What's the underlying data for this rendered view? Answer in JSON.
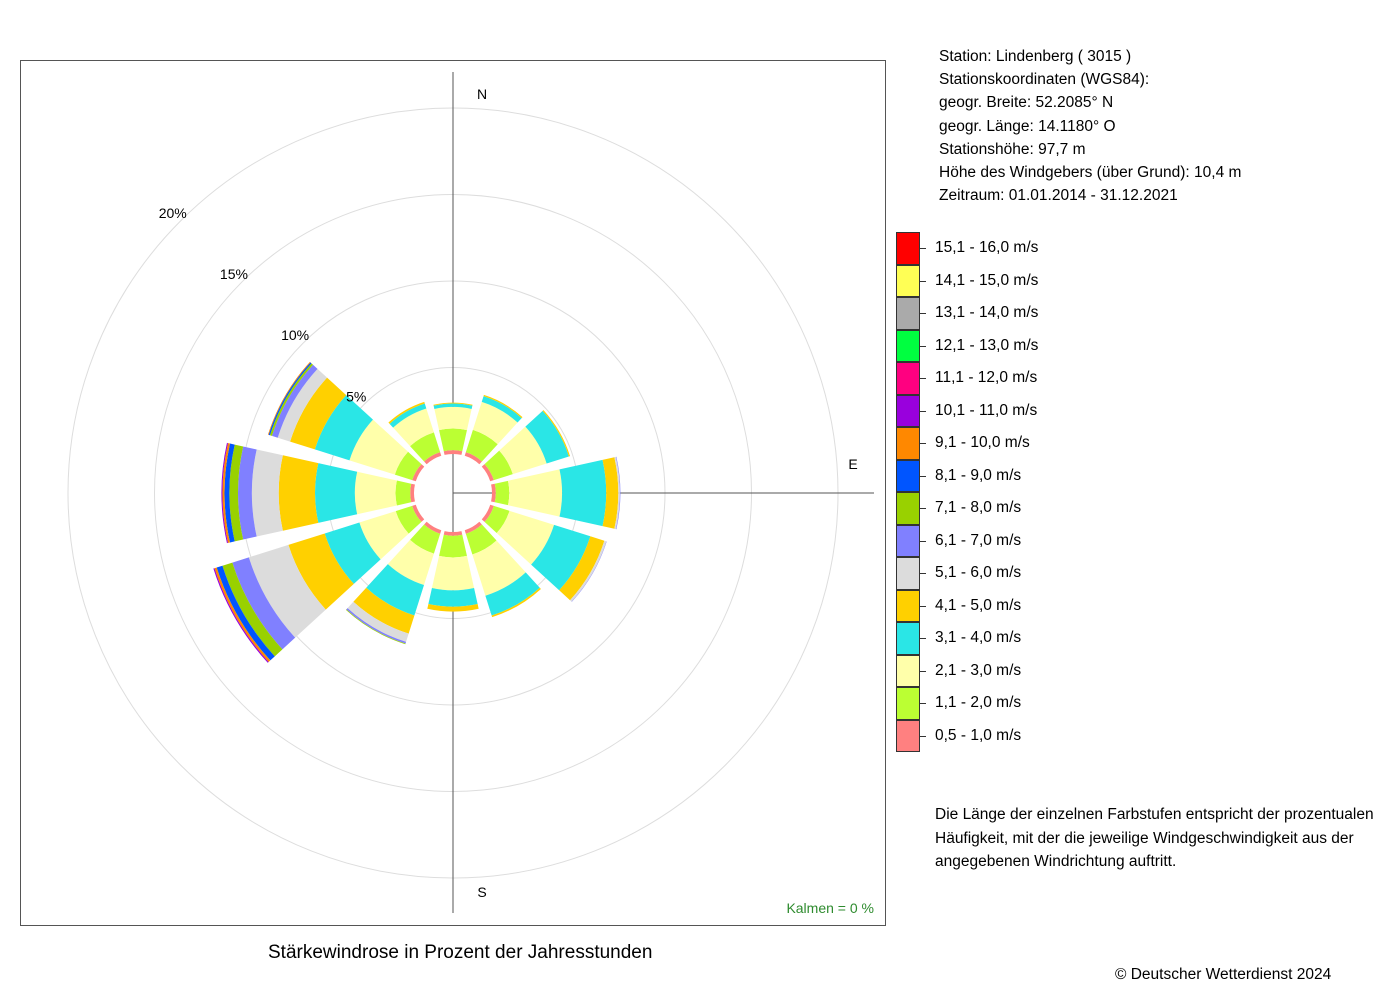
{
  "station": {
    "line1": "Station:  Lindenberg  ( 3015 )",
    "line2": "Stationskoordinaten (WGS84):",
    "line3": "geogr. Breite: 52.2085° N",
    "line4": "geogr. Länge: 14.1180° O",
    "line5": "Stationshöhe: 97,7 m",
    "line6": "Höhe des Windgebers (über Grund): 10,4 m",
    "line7": "Zeitraum: 01.01.2014 - 31.12.2021"
  },
  "explanation": {
    "line1": "Die Länge der einzelnen Farbstufen entspricht der prozentualen",
    "line2": "Häufigkeit, mit der die jeweilige Windgeschwindigkeit aus der",
    "line3": "angegebenen Windrichtung auftritt."
  },
  "title": "Stärkewindrose in Prozent der Jahresstunden",
  "copyright": "© Deutscher Wetterdienst  2024",
  "calm_label": "Kalmen  =  0 %",
  "chart_data": {
    "type": "wind-rose",
    "title": "Stärkewindrose in Prozent der Jahresstunden",
    "unit": "%",
    "calm_percent": 0,
    "radial_ticks": [
      "5%",
      "10%",
      "15%",
      "20%"
    ],
    "radial_tick_values": [
      5,
      10,
      15,
      20
    ],
    "direction_labels": {
      "N": "N",
      "E": "E",
      "S": "S"
    },
    "directions_deg": [
      0,
      30,
      60,
      90,
      120,
      150,
      180,
      210,
      240,
      270,
      300,
      330
    ],
    "speed_classes": [
      {
        "label": "0,5 - 1,0 m/s",
        "color": "#FF8080"
      },
      {
        "label": "1,1 - 2,0 m/s",
        "color": "#BBFF33"
      },
      {
        "label": "2,1 - 3,0 m/s",
        "color": "#FFFFAA"
      },
      {
        "label": "3,1 - 4,0 m/s",
        "color": "#2AE6E6"
      },
      {
        "label": "4,1 - 5,0 m/s",
        "color": "#FFD000"
      },
      {
        "label": "5,1 - 6,0 m/s",
        "color": "#DCDCDC"
      },
      {
        "label": "6,1 - 7,0 m/s",
        "color": "#8080FF"
      },
      {
        "label": "7,1 - 8,0 m/s",
        "color": "#99D100"
      },
      {
        "label": "8,1 - 9,0 m/s",
        "color": "#0055FF"
      },
      {
        "label": "9,1 - 10,0 m/s",
        "color": "#FF8800"
      },
      {
        "label": "10,1 - 11,0 m/s",
        "color": "#9900DD"
      },
      {
        "label": "11,1 - 12,0 m/s",
        "color": "#FF0080"
      },
      {
        "label": "12,1 - 13,0 m/s",
        "color": "#00FF40"
      },
      {
        "label": "13,1 - 14,0 m/s",
        "color": "#AAAAAA"
      },
      {
        "label": "14,1 - 15,0 m/s",
        "color": "#FFFF55"
      },
      {
        "label": "15,1 - 16,0 m/s",
        "color": "#FF0000"
      }
    ],
    "series": [
      {
        "direction_deg": 0,
        "values": [
          0.22,
          1.25,
          1.25,
          0.2,
          0.05
        ]
      },
      {
        "direction_deg": 30,
        "values": [
          0.22,
          1.35,
          1.7,
          0.35,
          0.07
        ]
      },
      {
        "direction_deg": 60,
        "values": [
          0.22,
          1.15,
          2.05,
          1.35,
          0.07
        ]
      },
      {
        "direction_deg": 90,
        "values": [
          0.22,
          0.78,
          3.05,
          2.55,
          0.7,
          0.09,
          0.03
        ]
      },
      {
        "direction_deg": 120,
        "values": [
          0.22,
          0.95,
          2.7,
          2.2,
          0.85,
          0.12,
          0.02
        ]
      },
      {
        "direction_deg": 150,
        "values": [
          0.22,
          1.25,
          2.5,
          1.2,
          0.1
        ]
      },
      {
        "direction_deg": 180,
        "values": [
          0.22,
          1.25,
          1.9,
          0.95,
          0.28
        ]
      },
      {
        "direction_deg": 210,
        "values": [
          0.22,
          1.2,
          1.9,
          1.85,
          1.1,
          0.5,
          0.1,
          0.04
        ]
      },
      {
        "direction_deg": 240,
        "values": [
          0.22,
          1.0,
          2.2,
          2.1,
          2.2,
          2.4,
          1.0,
          0.6,
          0.35,
          0.13,
          0.07
        ]
      },
      {
        "direction_deg": 270,
        "values": [
          0.22,
          0.85,
          2.35,
          2.3,
          2.1,
          1.55,
          0.8,
          0.5,
          0.28,
          0.12,
          0.06
        ]
      },
      {
        "direction_deg": 300,
        "values": [
          0.22,
          1.05,
          2.75,
          2.1,
          1.5,
          0.75,
          0.35,
          0.12,
          0.08,
          0.04
        ]
      },
      {
        "direction_deg": 330,
        "values": [
          0.22,
          1.2,
          1.45,
          0.3,
          0.1
        ]
      }
    ]
  }
}
